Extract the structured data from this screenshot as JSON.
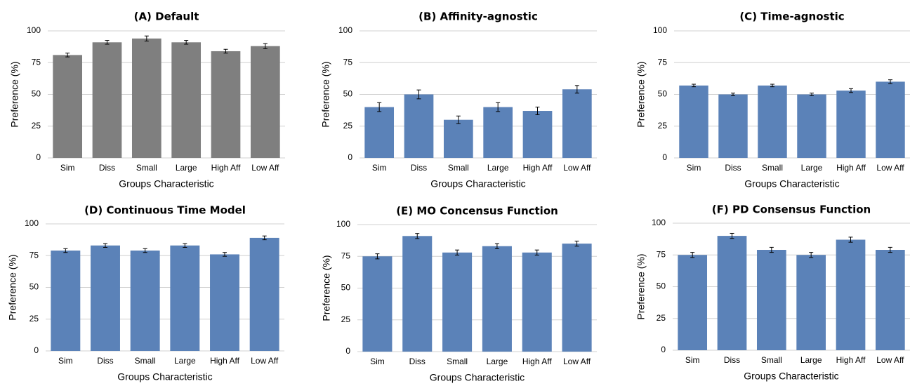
{
  "colors": {
    "default_bar": "#7f7f7f",
    "bar": "#5b82b8",
    "grid": "#d0d0d0",
    "error_bar": "#000000"
  },
  "chart_data": [
    {
      "type": "bar",
      "title": "(A) Default",
      "xlabel": "Groups Characteristic",
      "ylabel": "Preference (%)",
      "ylim": [
        0,
        100
      ],
      "yticks": [
        0,
        25,
        50,
        75,
        100
      ],
      "grid": true,
      "categories": [
        "Sim",
        "Diss",
        "Small",
        "Large",
        "High Aff",
        "Low Aff"
      ],
      "values": [
        81,
        91,
        94,
        91,
        84,
        88
      ],
      "errors": [
        1.5,
        1.5,
        2,
        1.5,
        1.5,
        2
      ],
      "color": "#7f7f7f"
    },
    {
      "type": "bar",
      "title": "(B) Affinity-agnostic",
      "xlabel": "Groups Characteristic",
      "ylabel": "Preference (%)",
      "ylim": [
        0,
        100
      ],
      "yticks": [
        0,
        25,
        50,
        75,
        100
      ],
      "grid": true,
      "categories": [
        "Sim",
        "Diss",
        "Small",
        "Large",
        "High Aff",
        "Low Aff"
      ],
      "values": [
        40,
        50,
        30,
        40,
        37,
        54
      ],
      "errors": [
        3.5,
        3.5,
        3,
        3.5,
        3,
        3
      ],
      "color": "#5b82b8"
    },
    {
      "type": "bar",
      "title": "(C) Time-agnostic",
      "xlabel": "Groups Characteristic",
      "ylabel": "Preference (%)",
      "ylim": [
        0,
        100
      ],
      "yticks": [
        0,
        25,
        50,
        75,
        100
      ],
      "grid": true,
      "categories": [
        "Sim",
        "Diss",
        "Small",
        "Large",
        "High Aff",
        "Low Aff"
      ],
      "values": [
        57,
        50,
        57,
        50,
        53,
        60
      ],
      "errors": [
        1,
        1,
        1,
        1,
        1.5,
        1.5
      ],
      "color": "#5b82b8"
    },
    {
      "type": "bar",
      "title": "(D) Continuous Time Model",
      "xlabel": "Groups Characteristic",
      "ylabel": "Preference (%)",
      "ylim": [
        0,
        100
      ],
      "yticks": [
        0,
        25,
        50,
        75,
        100
      ],
      "grid": true,
      "categories": [
        "Sim",
        "Diss",
        "Small",
        "Large",
        "High Aff",
        "Low Aff"
      ],
      "values": [
        79,
        83,
        79,
        83,
        76,
        89
      ],
      "errors": [
        1.5,
        1.5,
        1.5,
        1.5,
        1.5,
        1.5
      ],
      "color": "#5b82b8"
    },
    {
      "type": "bar",
      "title": "(E) MO Concensus Function",
      "xlabel": "Groups Characteristic",
      "ylabel": "Preference (%)",
      "ylim": [
        0,
        100
      ],
      "yticks": [
        0,
        25,
        50,
        75,
        100
      ],
      "grid": true,
      "categories": [
        "Sim",
        "Diss",
        "Small",
        "Large",
        "High Aff",
        "Low Aff"
      ],
      "values": [
        75,
        91,
        78,
        83,
        78,
        85
      ],
      "errors": [
        2,
        2,
        2,
        2,
        2,
        2
      ],
      "color": "#5b82b8"
    },
    {
      "type": "bar",
      "title": "(F) PD Consensus Function",
      "xlabel": "Groups Characteristic",
      "ylabel": "Preference (%)",
      "ylim": [
        0,
        100
      ],
      "yticks": [
        0,
        25,
        50,
        75,
        100
      ],
      "grid": true,
      "categories": [
        "Sim",
        "Diss",
        "Small",
        "Large",
        "High Aff",
        "Low Aff"
      ],
      "values": [
        75,
        90,
        79,
        75,
        87,
        79
      ],
      "errors": [
        2,
        2,
        2,
        2,
        2,
        2
      ],
      "color": "#5b82b8"
    }
  ]
}
